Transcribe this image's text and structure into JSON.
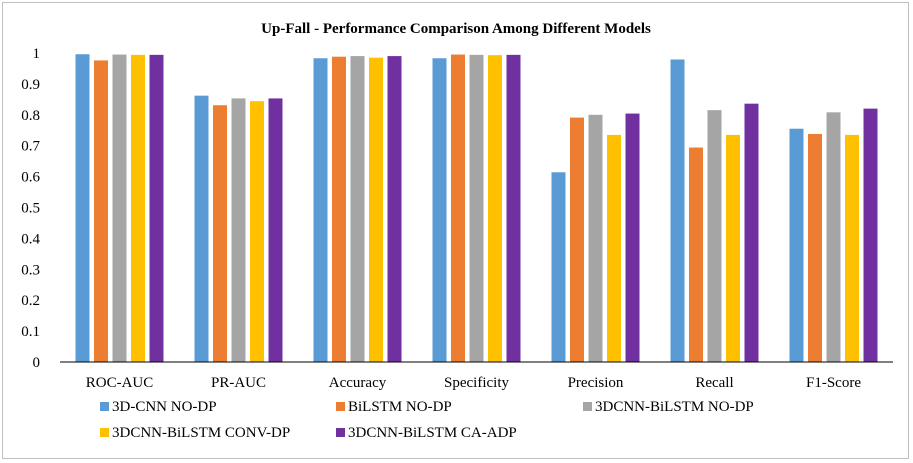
{
  "chart_data": {
    "type": "bar",
    "title": "Up-Fall - Performance Comparison Among Different Models",
    "xlabel": "",
    "ylabel": "",
    "ylim": [
      0,
      1
    ],
    "yticks": [
      "0",
      "0.1",
      "0.2",
      "0.3",
      "0.4",
      "0.5",
      "0.6",
      "0.7",
      "0.8",
      "0.9",
      "1"
    ],
    "grid": false,
    "legend_position": "bottom",
    "categories": [
      "ROC-AUC",
      "PR-AUC",
      "Accuracy",
      "Specificity",
      "Precision",
      "Recall",
      "F1-Score"
    ],
    "series": [
      {
        "name": "3D-CNN NO-DP",
        "color": "#5b9bd5",
        "values": [
          0.996,
          0.862,
          0.983,
          0.983,
          0.614,
          0.979,
          0.755
        ]
      },
      {
        "name": "BiLSTM NO-DP",
        "color": "#ed7d31",
        "values": [
          0.976,
          0.831,
          0.988,
          0.995,
          0.791,
          0.694,
          0.738
        ]
      },
      {
        "name": "3DCNN-BiLSTM NO-DP",
        "color": "#a5a5a5",
        "values": [
          0.995,
          0.853,
          0.99,
          0.994,
          0.8,
          0.815,
          0.808
        ]
      },
      {
        "name": "3DCNN-BiLSTM CONV-DP",
        "color": "#ffc000",
        "values": [
          0.994,
          0.844,
          0.985,
          0.993,
          0.735,
          0.735,
          0.735
        ]
      },
      {
        "name": "3DCNN-BiLSTM CA-ADP",
        "color": "#7030a0",
        "values": [
          0.994,
          0.853,
          0.99,
          0.994,
          0.804,
          0.836,
          0.82
        ]
      }
    ]
  }
}
